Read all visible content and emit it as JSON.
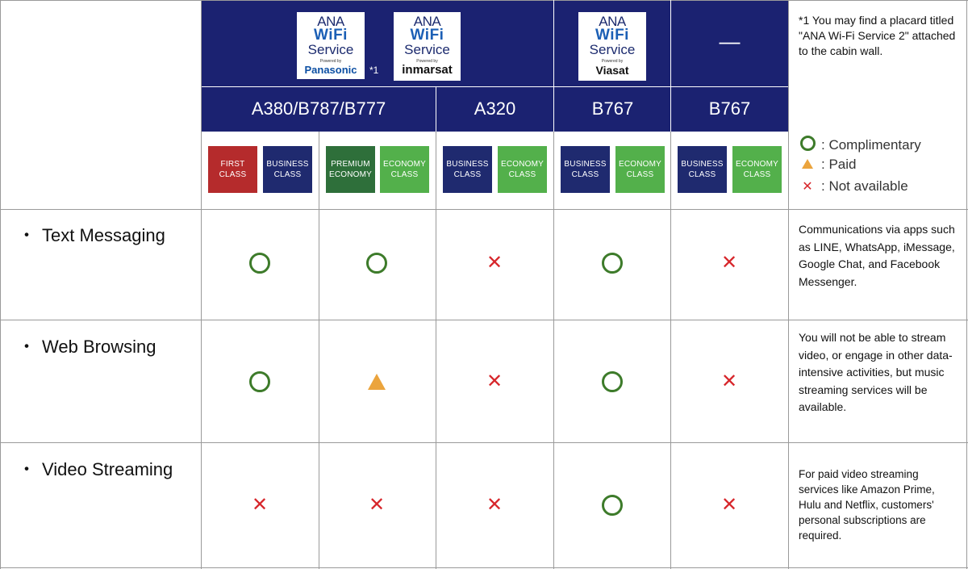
{
  "header": {
    "logos": [
      {
        "name": "panasonic",
        "ana": "ANA",
        "wifi": "WiFi",
        "service": "Service",
        "powered": "Powered by",
        "brand": "Panasonic"
      },
      {
        "name": "inmarsat",
        "ana": "ANA",
        "wifi": "WiFi",
        "service": "Service",
        "powered": "Powered by",
        "brand": "inmarsat"
      },
      {
        "name": "viasat",
        "ana": "ANA",
        "wifi": "WiFi",
        "service": "Service",
        "powered": "Powered by",
        "brand": "Viasat"
      }
    ],
    "note_marker": "*1",
    "no_service": "—",
    "models": [
      "A380/B787/B777",
      "A320",
      "B767",
      "B767"
    ],
    "footnote": "*1 You may find a placard titled \"ANA Wi-Fi Service 2\" attached to the cabin wall."
  },
  "classes": [
    {
      "label": "FIRST CLASS",
      "kind": "first"
    },
    {
      "label": "BUSINESS CLASS",
      "kind": "biz"
    },
    {
      "label": "PREMIUM ECONOMY",
      "kind": "prem"
    },
    {
      "label": "ECONOMY CLASS",
      "kind": "eco"
    },
    {
      "label": "BUSINESS CLASS",
      "kind": "biz"
    },
    {
      "label": "ECONOMY CLASS",
      "kind": "eco"
    },
    {
      "label": "BUSINESS CLASS",
      "kind": "biz"
    },
    {
      "label": "ECONOMY CLASS",
      "kind": "eco"
    },
    {
      "label": "BUSINESS CLASS",
      "kind": "biz"
    },
    {
      "label": "ECONOMY CLASS",
      "kind": "eco"
    }
  ],
  "legend": {
    "complimentary": ": Complimentary",
    "paid": ": Paid",
    "not_available": ": Not available",
    "colors": {
      "complimentary": "#3d7b2a",
      "paid": "#eba43d",
      "not_available": "#d7262b"
    }
  },
  "rows": [
    {
      "label": "Text Messaging",
      "marks": [
        "circle",
        "circle",
        "cross",
        "circle",
        "cross"
      ],
      "description": "Communications via apps such as LINE, WhatsApp, iMessage, Google Chat, and Facebook Messenger."
    },
    {
      "label": "Web Browsing",
      "marks": [
        "circle",
        "triangle",
        "cross",
        "circle",
        "cross"
      ],
      "description": "You will not be able to stream video, or engage in other data-intensive activities, but music streaming services will be available."
    },
    {
      "label": "Video Streaming",
      "marks": [
        "cross",
        "cross",
        "cross",
        "circle",
        "cross"
      ],
      "description": "For paid video streaming services like Amazon Prime, Hulu and Netflix, customers' personal subscriptions are required."
    }
  ],
  "bullet": "・",
  "cross_glyph": "✕"
}
